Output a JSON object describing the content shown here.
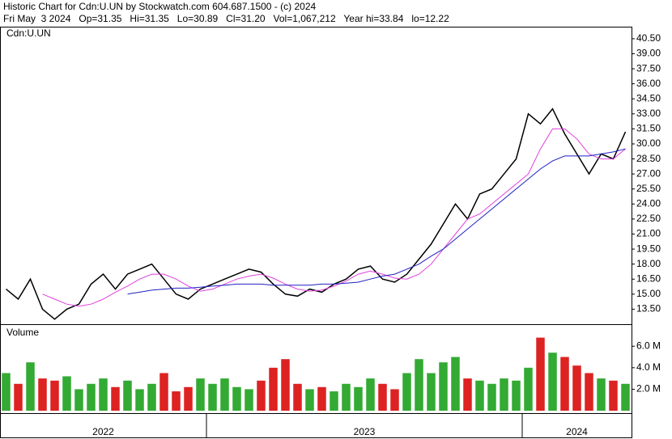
{
  "header": {
    "title": "Historic Chart for Cdn:U.UN by Stockwatch.com 604.687.1500 - (c) 2024",
    "quote": "Fri May  3 2024   Op=31.35   Hi=31.35   Lo=30.89   Cl=31.20   Vol=1,067,212   Year hi=33.84   lo=12.22"
  },
  "chart_data": [
    {
      "type": "line",
      "label": "Cdn:U.UN",
      "categories": [
        "2022",
        "2022",
        "2022",
        "2022",
        "2022",
        "2022",
        "2022",
        "2022",
        "2022",
        "2022",
        "2022",
        "2022",
        "2022",
        "2022",
        "2022",
        "2022",
        "2022",
        "2023",
        "2023",
        "2023",
        "2023",
        "2023",
        "2023",
        "2023",
        "2023",
        "2023",
        "2023",
        "2023",
        "2023",
        "2023",
        "2023",
        "2023",
        "2023",
        "2023",
        "2023",
        "2023",
        "2023",
        "2023",
        "2023",
        "2023",
        "2023",
        "2023",
        "2023",
        "2024",
        "2024",
        "2024",
        "2024",
        "2024",
        "2024",
        "2024",
        "2024",
        "2024"
      ],
      "series": [
        {
          "color": "#000000",
          "values": [
            15.5,
            14.5,
            16.5,
            13.5,
            12.5,
            13.5,
            14,
            16,
            17,
            15.5,
            17,
            17.5,
            18,
            16.5,
            15,
            14.5,
            15.5,
            16,
            16.5,
            17,
            17.5,
            17.2,
            16,
            15,
            14.8,
            15.5,
            15.2,
            16,
            16.5,
            17.5,
            17.8,
            16.5,
            16.2,
            17,
            18.5,
            20,
            22,
            24,
            22.5,
            25,
            25.5,
            27,
            28.5,
            33,
            32,
            33.5,
            31,
            29,
            27,
            29,
            28.5,
            31.2
          ]
        },
        {
          "color": "#e040e0",
          "values": [
            null,
            null,
            null,
            15,
            14.5,
            14,
            13.8,
            14,
            14.5,
            15.2,
            15.8,
            16.5,
            17,
            17,
            16.5,
            15.8,
            15.3,
            15.5,
            16,
            16.5,
            16.8,
            17,
            16.6,
            16,
            15.5,
            15.3,
            15.4,
            15.8,
            16.3,
            17,
            17.3,
            17,
            16.6,
            16.5,
            17,
            18,
            19.5,
            21,
            22.5,
            23,
            24,
            25,
            26,
            27,
            29.5,
            31.5,
            31.5,
            30.5,
            29,
            28.5,
            28.5,
            29.5
          ]
        },
        {
          "color": "#2020c0",
          "values": [
            null,
            null,
            null,
            null,
            null,
            null,
            null,
            null,
            null,
            null,
            15,
            15.2,
            15.4,
            15.5,
            15.6,
            15.6,
            15.7,
            15.8,
            15.9,
            16,
            16,
            16,
            15.9,
            15.9,
            15.9,
            15.9,
            16,
            16,
            16.1,
            16.2,
            16.5,
            16.8,
            17,
            17.5,
            18,
            18.8,
            19.5,
            20.5,
            21.5,
            22.5,
            23.5,
            24.5,
            25.5,
            26.5,
            27.5,
            28.3,
            28.8,
            28.8,
            28.8,
            29,
            29.2,
            29.5
          ]
        }
      ],
      "ylim": [
        12,
        41.3
      ],
      "yticks": [
        {
          "value": 13.5,
          "label": "13.50"
        },
        {
          "value": 15,
          "label": "15.00"
        },
        {
          "value": 16.5,
          "label": "16.50"
        },
        {
          "value": 18,
          "label": "18.00"
        },
        {
          "value": 19.5,
          "label": "19.50"
        },
        {
          "value": 21,
          "label": "21.00"
        },
        {
          "value": 22.5,
          "label": "22.50"
        },
        {
          "value": 24,
          "label": "24.00"
        },
        {
          "value": 25.5,
          "label": "25.50"
        },
        {
          "value": 27,
          "label": "27.00"
        },
        {
          "value": 28.5,
          "label": "28.50"
        },
        {
          "value": 30,
          "label": "30.00"
        },
        {
          "value": 31.5,
          "label": "31.50"
        },
        {
          "value": 33,
          "label": "33.00"
        },
        {
          "value": 34.5,
          "label": "34.50"
        },
        {
          "value": 36,
          "label": "36.00"
        },
        {
          "value": 37.5,
          "label": "37.50"
        },
        {
          "value": 39,
          "label": "39.00"
        },
        {
          "value": 40.5,
          "label": "40.50"
        }
      ]
    },
    {
      "type": "bar",
      "label": "Volume",
      "up_color": "#33aa33",
      "down_color": "#dd2222",
      "values": [
        3500000,
        2500000,
        4500000,
        3000000,
        2800000,
        3200000,
        2000000,
        2500000,
        3000000,
        2200000,
        2800000,
        2000000,
        2500000,
        3500000,
        1800000,
        2200000,
        3000000,
        2500000,
        3000000,
        2200000,
        2000000,
        2800000,
        4000000,
        4800000,
        2500000,
        2000000,
        2200000,
        1800000,
        2500000,
        2200000,
        3000000,
        2500000,
        2000000,
        3500000,
        4800000,
        3500000,
        4500000,
        5000000,
        3000000,
        2800000,
        2500000,
        3000000,
        2800000,
        4000000,
        6800000,
        5400000,
        5000000,
        4200000,
        3500000,
        3000000,
        2800000,
        2500000
      ],
      "ylim": [
        0,
        7900000
      ],
      "yticks": [
        {
          "value": 2000000,
          "label": "2.0 M"
        },
        {
          "value": 4000000,
          "label": "4.0 M"
        },
        {
          "value": 6000000,
          "label": "6.0 M"
        }
      ]
    }
  ]
}
